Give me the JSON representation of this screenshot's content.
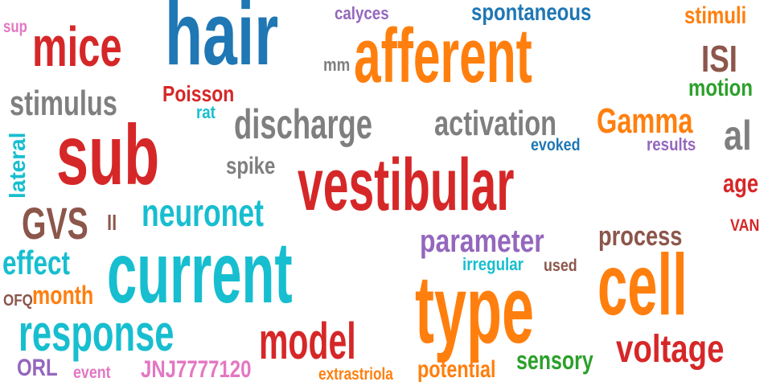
{
  "colors": {
    "background": "#ffffff",
    "red": "#d62728",
    "blue": "#1f77b4",
    "orange": "#ff7f0e",
    "gray": "#7f7f7f",
    "cyan": "#17becf",
    "green": "#2ca02c",
    "purple": "#9467bd",
    "brown": "#8c564b",
    "pink": "#e377c2",
    "olive": "#bcbd22"
  },
  "words": [
    {
      "id": "hair",
      "text": "hair",
      "color": "#1f77b4"
    },
    {
      "id": "afferent",
      "text": "afferent",
      "color": "#ff7f0e"
    },
    {
      "id": "mice",
      "text": "mice",
      "color": "#d62728"
    },
    {
      "id": "sub",
      "text": "sub",
      "color": "#d62728"
    },
    {
      "id": "vestibular",
      "text": "vestibular",
      "color": "#d62728"
    },
    {
      "id": "current",
      "text": "current",
      "color": "#17becf"
    },
    {
      "id": "type",
      "text": "type",
      "color": "#ff7f0e"
    },
    {
      "id": "cell",
      "text": "cell",
      "color": "#ff7f0e"
    },
    {
      "id": "response",
      "text": "response",
      "color": "#17becf"
    },
    {
      "id": "model",
      "text": "model",
      "color": "#d62728"
    },
    {
      "id": "voltage",
      "text": "voltage",
      "color": "#d62728"
    },
    {
      "id": "discharge",
      "text": "discharge",
      "color": "#7f7f7f"
    },
    {
      "id": "activation",
      "text": "activation",
      "color": "#7f7f7f"
    },
    {
      "id": "stimulus",
      "text": "stimulus",
      "color": "#7f7f7f"
    },
    {
      "id": "gamma",
      "text": "Gamma",
      "color": "#ff7f0e"
    },
    {
      "id": "al",
      "text": "al",
      "color": "#7f7f7f"
    },
    {
      "id": "isi",
      "text": "ISI",
      "color": "#8c564b"
    },
    {
      "id": "stimuli",
      "text": "stimuli",
      "color": "#ff7f0e"
    },
    {
      "id": "motion",
      "text": "motion",
      "color": "#2ca02c"
    },
    {
      "id": "spontaneous",
      "text": "spontaneous",
      "color": "#1f77b4"
    },
    {
      "id": "calyces",
      "text": "calyces",
      "color": "#9467bd"
    },
    {
      "id": "sup",
      "text": "sup",
      "color": "#e377c2"
    },
    {
      "id": "mm",
      "text": "mm",
      "color": "#7f7f7f"
    },
    {
      "id": "poisson",
      "text": "Poisson",
      "color": "#d62728"
    },
    {
      "id": "rat",
      "text": "rat",
      "color": "#17becf"
    },
    {
      "id": "evoked",
      "text": "evoked",
      "color": "#1f77b4"
    },
    {
      "id": "results",
      "text": "results",
      "color": "#9467bd"
    },
    {
      "id": "lateral",
      "text": "lateral",
      "color": "#17becf"
    },
    {
      "id": "spike",
      "text": "spike",
      "color": "#7f7f7f"
    },
    {
      "id": "age",
      "text": "age",
      "color": "#d62728"
    },
    {
      "id": "gvs",
      "text": "GVS",
      "color": "#8c564b"
    },
    {
      "id": "ll",
      "text": "ll",
      "color": "#8c564b"
    },
    {
      "id": "neuronet",
      "text": "neuronet",
      "color": "#17becf"
    },
    {
      "id": "parameter",
      "text": "parameter",
      "color": "#9467bd"
    },
    {
      "id": "process",
      "text": "process",
      "color": "#8c564b"
    },
    {
      "id": "van",
      "text": "VAN",
      "color": "#d62728"
    },
    {
      "id": "effect",
      "text": "effect",
      "color": "#17becf"
    },
    {
      "id": "irregular",
      "text": "irregular",
      "color": "#17becf"
    },
    {
      "id": "used",
      "text": "used",
      "color": "#8c564b"
    },
    {
      "id": "ofq",
      "text": "OFQ",
      "color": "#8c564b"
    },
    {
      "id": "month",
      "text": "month",
      "color": "#ff7f0e"
    },
    {
      "id": "orl",
      "text": "ORL",
      "color": "#9467bd"
    },
    {
      "id": "event",
      "text": "event",
      "color": "#e377c2"
    },
    {
      "id": "jnj",
      "text": "JNJ7777120",
      "color": "#e377c2"
    },
    {
      "id": "extrastriola",
      "text": "extrastriola",
      "color": "#ff7f0e"
    },
    {
      "id": "potential",
      "text": "potential",
      "color": "#ff7f0e"
    },
    {
      "id": "sensory",
      "text": "sensory",
      "color": "#2ca02c"
    }
  ]
}
